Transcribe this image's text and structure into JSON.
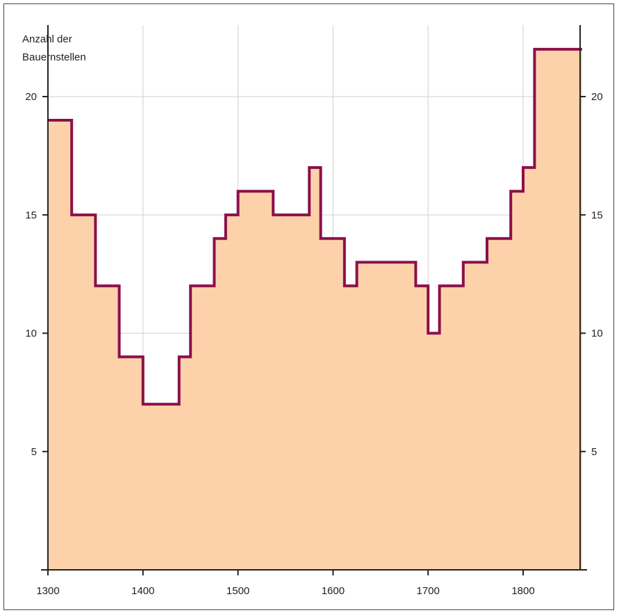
{
  "chart_data": {
    "type": "area",
    "step": true,
    "ylabel_lines": [
      "Anzahl der",
      "Bauernstellen"
    ],
    "xlim": [
      1300,
      1862
    ],
    "ylim": [
      0,
      23
    ],
    "x_ticks": [
      1300,
      1400,
      1500,
      1600,
      1700,
      1800
    ],
    "y_ticks": [
      5,
      10,
      15,
      20
    ],
    "grid": true,
    "colors": {
      "fill": "#fdd2ab",
      "line": "#8b1049",
      "grid": "#cfcfcf",
      "axis": "#222222"
    },
    "steps": [
      {
        "x": 1300,
        "y": 19
      },
      {
        "x": 1325,
        "y": 15
      },
      {
        "x": 1350,
        "y": 12
      },
      {
        "x": 1375,
        "y": 9
      },
      {
        "x": 1400,
        "y": 7
      },
      {
        "x": 1438,
        "y": 9
      },
      {
        "x": 1450,
        "y": 12
      },
      {
        "x": 1475,
        "y": 14
      },
      {
        "x": 1487,
        "y": 15
      },
      {
        "x": 1500,
        "y": 16
      },
      {
        "x": 1537,
        "y": 15
      },
      {
        "x": 1575,
        "y": 17
      },
      {
        "x": 1587,
        "y": 14
      },
      {
        "x": 1612,
        "y": 12
      },
      {
        "x": 1625,
        "y": 13
      },
      {
        "x": 1687,
        "y": 12
      },
      {
        "x": 1700,
        "y": 10
      },
      {
        "x": 1712,
        "y": 12
      },
      {
        "x": 1737,
        "y": 13
      },
      {
        "x": 1762,
        "y": 14
      },
      {
        "x": 1787,
        "y": 16
      },
      {
        "x": 1800,
        "y": 17
      },
      {
        "x": 1812,
        "y": 22
      }
    ],
    "x_end": 1862
  }
}
